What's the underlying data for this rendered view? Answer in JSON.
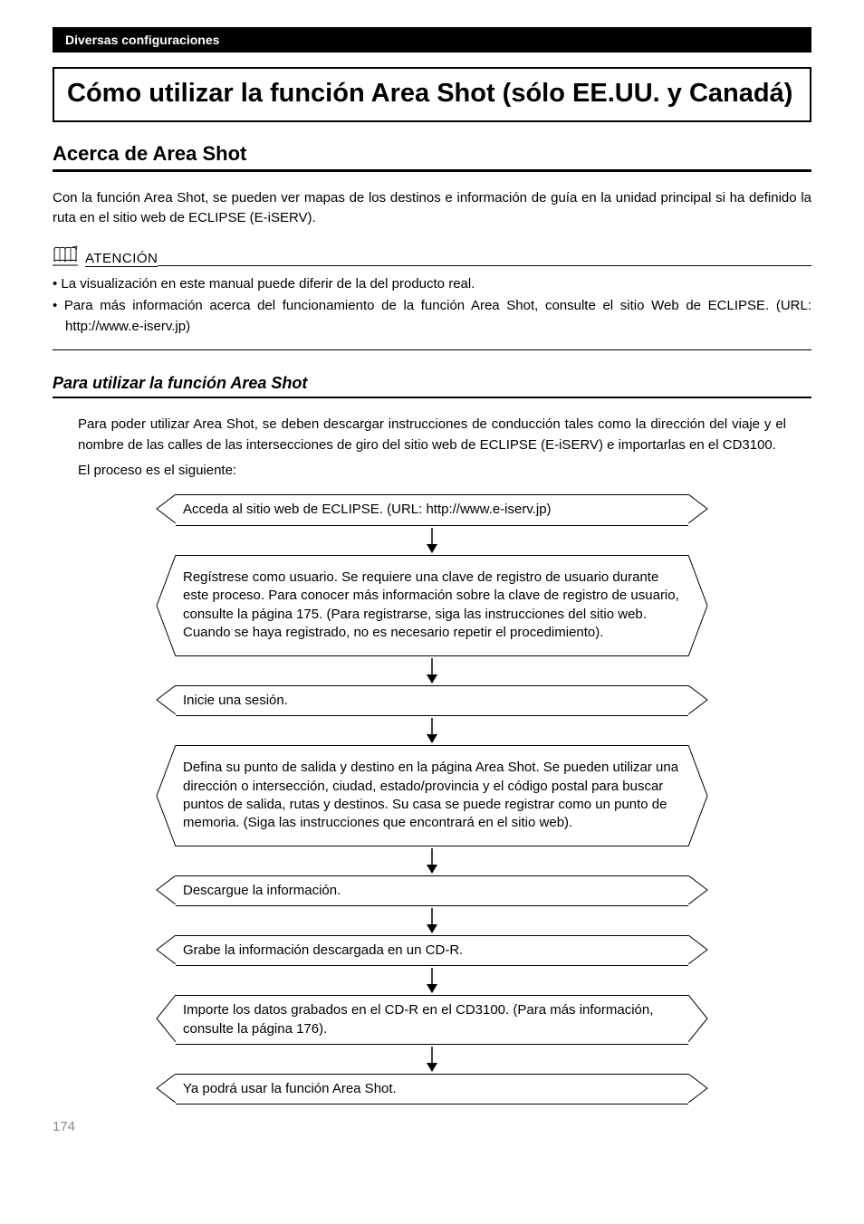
{
  "header_bar": "Diversas configuraciones",
  "title": "Cómo utilizar la función Area Shot (sólo EE.UU. y Canadá)",
  "section_heading": "Acerca de Area Shot",
  "intro_text": "Con la función Area Shot, se pueden ver mapas de los destinos e información de guía en la unidad principal si ha definido la ruta en el sitio web de ECLIPSE (E-iSERV).",
  "attention_label": "ATENCIÓN",
  "attention_items": [
    "La visualización en este manual puede diferir de la del producto real.",
    "Para más información acerca del funcionamiento de la función Area Shot, consulte el sitio Web de ECLIPSE. (URL: http://www.e-iserv.jp)"
  ],
  "sub_heading": "Para utilizar la función Area Shot",
  "sub_body": "Para poder utilizar Area Shot, se deben descargar instrucciones de conducción tales como la dirección del viaje y el nombre de las calles de las intersecciones de giro del sitio web de ECLIPSE (E-iSERV) e importarlas en el CD3100.",
  "sub_body2": "El proceso es el siguiente:",
  "steps": [
    "Acceda al sitio web de ECLIPSE. (URL: http://www.e-iserv.jp)",
    "Regístrese como usuario. Se requiere una clave de registro de usuario durante este proceso. Para conocer más información sobre la clave de registro de usuario, consulte la página 175. (Para registrarse, siga las instrucciones del sitio web. Cuando se haya registrado, no es necesario repetir el procedimiento).",
    "Inicie una sesión.",
    "Defina su punto de salida y destino en la página Area Shot. Se pueden utilizar una dirección o intersección, ciudad, estado/provincia y el código postal para buscar puntos de salida, rutas y destinos. Su casa se puede registrar como un punto de memoria. (Siga las instrucciones que encontrará en el sitio web).",
    "Descargue la información.",
    "Grabe la información descargada en un CD-R.",
    "Importe los datos grabados en el CD-R en el CD3100. (Para más información, consulte la página 176).",
    "Ya podrá usar la función Area Shot."
  ],
  "page_number": "174"
}
